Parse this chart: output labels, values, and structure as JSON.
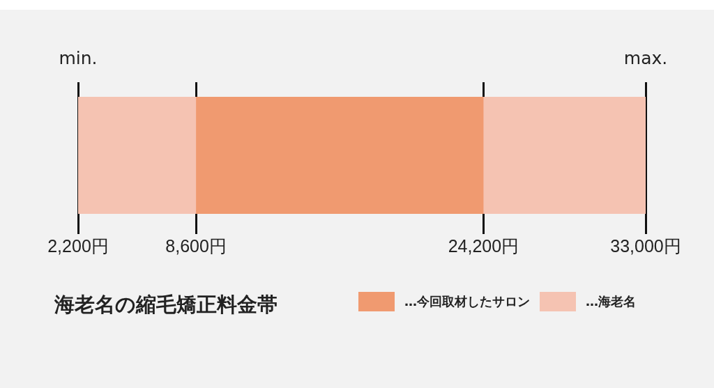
{
  "chart_data": {
    "type": "bar",
    "orientation": "horizontal",
    "title": "海老名の縮毛矯正料金帯",
    "categories": [
      null
    ],
    "series": [
      {
        "name": "…今回取材したサロン",
        "color": "#f09a70",
        "values": [
          15600
        ],
        "base": [
          8600
        ]
      },
      {
        "name": "…海老名",
        "color": "#f5c3b2",
        "values": [
          30800
        ],
        "base": [
          2200
        ]
      }
    ],
    "xlim": [
      2200,
      33000
    ],
    "xticks": [
      {
        "value": 2200,
        "label": "2,200円"
      },
      {
        "value": 8600,
        "label": "8,600円"
      },
      {
        "value": 24200,
        "label": "24,200円"
      },
      {
        "value": 33000,
        "label": "33,000円"
      }
    ],
    "annotations": [
      "min.",
      "max."
    ],
    "grid": "x",
    "legend": "bottom right"
  }
}
